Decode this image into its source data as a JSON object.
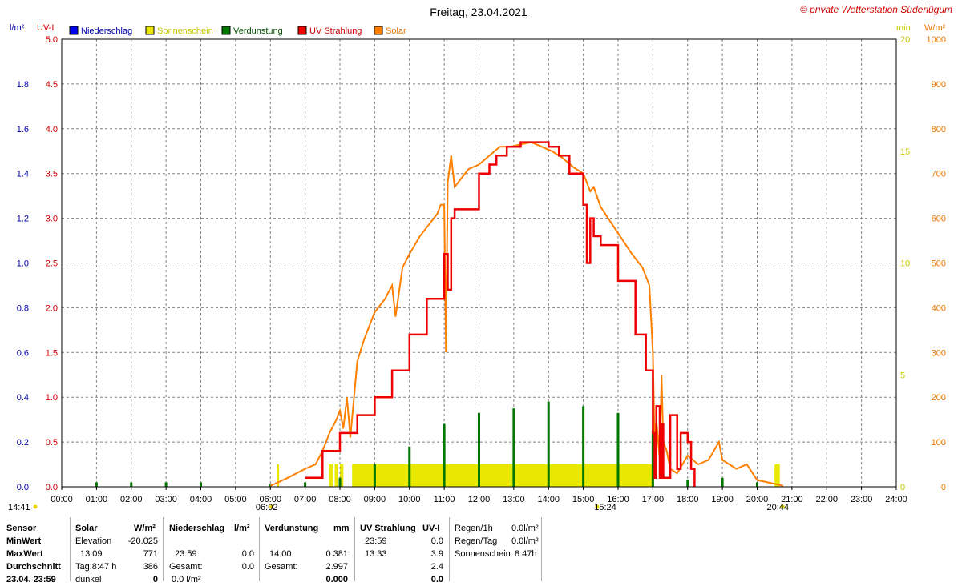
{
  "chart_data": {
    "type": "line",
    "title": "Freitag, 23.04.2021",
    "copyright": "© private Wetterstation Süderlügum",
    "axes": {
      "left_outer": {
        "label": "l/m²",
        "range": [
          0,
          2.0
        ],
        "ticks": [
          "0.0",
          "0.2",
          "0.4",
          "0.6",
          "0.8",
          "1.0",
          "1.2",
          "1.4",
          "1.6",
          "1.8"
        ],
        "color": "#0000aa"
      },
      "left_inner": {
        "label": "UV-I",
        "range": [
          0,
          5.0
        ],
        "ticks": [
          "0.0",
          "0.5",
          "1.0",
          "1.5",
          "2.0",
          "2.5",
          "3.0",
          "3.5",
          "4.0",
          "4.5",
          "5.0"
        ],
        "color": "#cc0000"
      },
      "right_inner": {
        "label": "min",
        "range": [
          0,
          20
        ],
        "ticks": [
          "0",
          "5",
          "10",
          "15",
          "20"
        ],
        "color": "#c8c800"
      },
      "right_outer": {
        "label": "W/m²",
        "range": [
          0,
          1000
        ],
        "ticks": [
          "0",
          "100",
          "200",
          "300",
          "400",
          "500",
          "600",
          "700",
          "800",
          "900",
          "1000"
        ],
        "color": "#e87800"
      },
      "x": {
        "range": [
          0,
          24
        ],
        "ticks": [
          "00:00",
          "01:00",
          "02:00",
          "03:00",
          "04:00",
          "05:00",
          "06:00",
          "07:00",
          "08:00",
          "09:00",
          "10:00",
          "11:00",
          "12:00",
          "13:00",
          "14:00",
          "15:00",
          "16:00",
          "17:00",
          "18:00",
          "19:00",
          "20:00",
          "21:00",
          "22:00",
          "23:00",
          "24:00"
        ]
      }
    },
    "grid": true,
    "legend": {
      "placement": "top-left",
      "items": [
        {
          "name": "Niederschlag",
          "color": "#0000ee",
          "text_color": "#0000aa"
        },
        {
          "name": "Sonnenschein",
          "color": "#e8e800",
          "text_color": "#c8c800"
        },
        {
          "name": "Verdunstung",
          "color": "#007800",
          "text_color": "#005000"
        },
        {
          "name": "UV Strahlung",
          "color": "#ee0000",
          "text_color": "#cc0000"
        },
        {
          "name": "Solar",
          "color": "#ff8000",
          "text_color": "#e87800"
        }
      ]
    },
    "markers": [
      {
        "label": "14:41",
        "hour": 14.683,
        "position": "left"
      },
      {
        "label": "06:02",
        "hour": 6.033
      },
      {
        "label": "15:24",
        "hour": 15.4
      },
      {
        "label": "20:44",
        "hour": 20.733
      }
    ],
    "series": [
      {
        "name": "Solar",
        "unit": "W/m²",
        "axis": "right_outer",
        "x": [
          6.0,
          6.5,
          7.0,
          7.3,
          7.5,
          7.7,
          7.9,
          8.0,
          8.1,
          8.2,
          8.3,
          8.5,
          8.7,
          9.0,
          9.3,
          9.5,
          9.6,
          9.8,
          10.0,
          10.3,
          10.6,
          10.8,
          10.9,
          11.0,
          11.05,
          11.1,
          11.2,
          11.3,
          11.5,
          11.7,
          12.0,
          12.3,
          12.6,
          12.9,
          13.2,
          13.5,
          13.8,
          14.1,
          14.4,
          14.7,
          15.0,
          15.2,
          15.3,
          15.5,
          15.8,
          16.1,
          16.4,
          16.7,
          16.9,
          17.0,
          17.05,
          17.1,
          17.2,
          17.25,
          17.3,
          17.4,
          17.5,
          17.7,
          18.0,
          18.3,
          18.6,
          18.9,
          19.0,
          19.2,
          19.4,
          19.7,
          20.0,
          20.3,
          20.6,
          20.75
        ],
        "y": [
          2,
          20,
          40,
          50,
          80,
          120,
          150,
          170,
          130,
          200,
          110,
          280,
          330,
          390,
          420,
          450,
          380,
          490,
          520,
          560,
          590,
          610,
          630,
          630,
          300,
          680,
          740,
          670,
          690,
          710,
          720,
          740,
          760,
          760,
          765,
          770,
          760,
          750,
          735,
          715,
          700,
          660,
          670,
          625,
          590,
          555,
          520,
          490,
          450,
          300,
          100,
          150,
          60,
          250,
          100,
          80,
          40,
          30,
          70,
          50,
          60,
          100,
          60,
          50,
          40,
          50,
          15,
          10,
          5,
          2
        ]
      },
      {
        "name": "UV Strahlung",
        "unit": "UV-I",
        "axis": "left_inner",
        "x": [
          7.0,
          7.5,
          8.0,
          8.5,
          9.0,
          9.5,
          10.0,
          10.5,
          11.0,
          11.1,
          11.2,
          11.3,
          11.5,
          12.0,
          12.3,
          12.5,
          12.7,
          12.8,
          13.0,
          13.2,
          13.5,
          14.0,
          14.3,
          14.6,
          15.0,
          15.1,
          15.2,
          15.3,
          15.5,
          16.0,
          16.5,
          16.8,
          17.0,
          17.05,
          17.1,
          17.2,
          17.25,
          17.3,
          17.5,
          17.7,
          17.8,
          18.0,
          18.1,
          18.2
        ],
        "y": [
          0.1,
          0.4,
          0.6,
          0.8,
          1.0,
          1.3,
          1.7,
          2.1,
          2.6,
          2.2,
          3.0,
          3.1,
          3.1,
          3.5,
          3.6,
          3.7,
          3.7,
          3.8,
          3.8,
          3.85,
          3.85,
          3.8,
          3.7,
          3.5,
          3.15,
          2.5,
          3.0,
          2.8,
          2.7,
          2.3,
          1.7,
          1.3,
          0.6,
          0.1,
          0.9,
          0.1,
          0.7,
          0.1,
          0.8,
          0.2,
          0.6,
          0.5,
          0.2,
          0.0
        ]
      },
      {
        "name": "Verdunstung",
        "unit": "mm",
        "axis": "left_outer",
        "x": [
          1,
          2,
          3,
          4,
          6,
          7,
          8,
          9,
          10,
          11,
          12,
          13,
          14,
          15,
          16,
          17,
          18,
          19,
          20
        ],
        "y": [
          0.02,
          0.02,
          0.02,
          0.02,
          0.01,
          0.02,
          0.04,
          0.1,
          0.18,
          0.28,
          0.33,
          0.35,
          0.38,
          0.36,
          0.33,
          0.25,
          0.03,
          0.04,
          0.02
        ]
      },
      {
        "name": "Sonnenschein",
        "unit": "min",
        "axis": "right_inner",
        "bands": [
          [
            6.18,
            6.25
          ],
          [
            7.7,
            7.8
          ],
          [
            7.85,
            7.95
          ],
          [
            8.0,
            8.1
          ],
          [
            8.35,
            17.0
          ],
          [
            20.5,
            20.65
          ]
        ],
        "value": 1.0
      },
      {
        "name": "Niederschlag",
        "unit": "l/m²",
        "axis": "left_outer",
        "values": []
      }
    ]
  },
  "stats": {
    "labels": [
      "Sensor",
      "MinWert",
      "MaxWert",
      "Durchschnitt",
      "23.04. 23:59"
    ],
    "solar": {
      "header": "Solar",
      "unit": "W/m²",
      "rows": [
        [
          "Elevation",
          "-20.025"
        ],
        [
          "13:09",
          "771"
        ],
        [
          "Tag:8:47 h",
          "386"
        ],
        [
          "dunkel",
          "0"
        ]
      ]
    },
    "niederschlag": {
      "header": "Niederschlag",
      "unit": "l/m²",
      "rows": [
        [
          "",
          ""
        ],
        [
          "23:59",
          "0.0"
        ],
        [
          "Gesamt:",
          "0.0"
        ],
        [
          "0.0 l/m²",
          ""
        ]
      ]
    },
    "verdunstung": {
      "header": "Verdunstung",
      "unit": "mm",
      "rows": [
        [
          "",
          ""
        ],
        [
          "14:00",
          "0.381"
        ],
        [
          "Gesamt:",
          "2.997"
        ],
        [
          "",
          "0.000"
        ]
      ]
    },
    "uv": {
      "header": "UV Strahlung",
      "unit": "UV-I",
      "rows": [
        [
          "23:59",
          "0.0"
        ],
        [
          "13:33",
          "3.9"
        ],
        [
          "",
          "2.4"
        ],
        [
          "",
          "0.0"
        ]
      ]
    },
    "regen": {
      "rows": [
        [
          "Regen/1h",
          "0.0l/m²"
        ],
        [
          "Regen/Tag",
          "0.0l/m²"
        ],
        [
          "Sonnenschein",
          "8:47h"
        ]
      ]
    }
  }
}
